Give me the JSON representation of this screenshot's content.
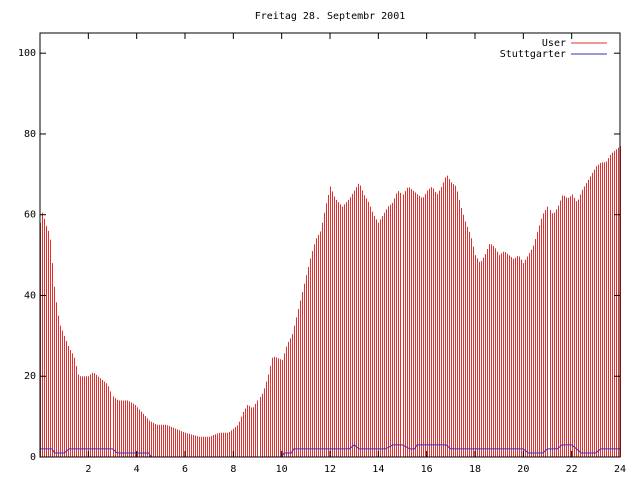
{
  "chart_data": {
    "type": "bar",
    "title": "Freitag 28. Septembr 2001",
    "xlabel": "",
    "ylabel": "",
    "xlim": [
      0,
      24
    ],
    "ylim": [
      0,
      105
    ],
    "x_ticks": [
      "2",
      "4",
      "6",
      "8",
      "10",
      "12",
      "14",
      "16",
      "18",
      "20",
      "22",
      "24"
    ],
    "y_ticks": [
      "0",
      "20",
      "40",
      "60",
      "80",
      "100"
    ],
    "grid": false,
    "legend_position": "top-right",
    "series": [
      {
        "name": "User",
        "type": "bar",
        "color": "#e03030",
        "key_points": [
          [
            0,
            58
          ],
          [
            0.1,
            61
          ],
          [
            0.2,
            58
          ],
          [
            0.4,
            55
          ],
          [
            0.6,
            41
          ],
          [
            0.8,
            33
          ],
          [
            1.0,
            30
          ],
          [
            1.2,
            27
          ],
          [
            1.4,
            25
          ],
          [
            1.6,
            20
          ],
          [
            1.8,
            20
          ],
          [
            2.0,
            20
          ],
          [
            2.2,
            21
          ],
          [
            2.4,
            20
          ],
          [
            2.6,
            19
          ],
          [
            2.8,
            18
          ],
          [
            3.0,
            15
          ],
          [
            3.2,
            14
          ],
          [
            3.6,
            14
          ],
          [
            3.9,
            13
          ],
          [
            4.2,
            11
          ],
          [
            4.5,
            9
          ],
          [
            4.8,
            8
          ],
          [
            5.2,
            8
          ],
          [
            5.6,
            7
          ],
          [
            6.0,
            6
          ],
          [
            6.6,
            5
          ],
          [
            7.0,
            5
          ],
          [
            7.4,
            6
          ],
          [
            7.8,
            6
          ],
          [
            8.0,
            7
          ],
          [
            8.2,
            8
          ],
          [
            8.4,
            11
          ],
          [
            8.6,
            13
          ],
          [
            8.8,
            12
          ],
          [
            9.0,
            14
          ],
          [
            9.2,
            16
          ],
          [
            9.4,
            20
          ],
          [
            9.6,
            25
          ],
          [
            10.0,
            24
          ],
          [
            10.2,
            28
          ],
          [
            10.4,
            30
          ],
          [
            10.6,
            35
          ],
          [
            10.8,
            40
          ],
          [
            11.0,
            45
          ],
          [
            11.2,
            50
          ],
          [
            11.4,
            54
          ],
          [
            11.6,
            56
          ],
          [
            11.8,
            62
          ],
          [
            12.0,
            67
          ],
          [
            12.2,
            64
          ],
          [
            12.5,
            62
          ],
          [
            12.8,
            64
          ],
          [
            13.0,
            66
          ],
          [
            13.2,
            68
          ],
          [
            13.4,
            65
          ],
          [
            13.6,
            63
          ],
          [
            13.8,
            60
          ],
          [
            14.0,
            58
          ],
          [
            14.2,
            60
          ],
          [
            14.4,
            62
          ],
          [
            14.6,
            63
          ],
          [
            14.8,
            66
          ],
          [
            15.0,
            65
          ],
          [
            15.2,
            67
          ],
          [
            15.4,
            66
          ],
          [
            15.6,
            65
          ],
          [
            15.8,
            64
          ],
          [
            16.0,
            66
          ],
          [
            16.2,
            67
          ],
          [
            16.4,
            65
          ],
          [
            16.6,
            67
          ],
          [
            16.8,
            70
          ],
          [
            17.0,
            68
          ],
          [
            17.2,
            67
          ],
          [
            17.4,
            62
          ],
          [
            17.6,
            58
          ],
          [
            17.8,
            55
          ],
          [
            18.0,
            50
          ],
          [
            18.2,
            48
          ],
          [
            18.4,
            50
          ],
          [
            18.6,
            53
          ],
          [
            18.8,
            52
          ],
          [
            19.0,
            50
          ],
          [
            19.2,
            51
          ],
          [
            19.4,
            50
          ],
          [
            19.6,
            49
          ],
          [
            19.8,
            50
          ],
          [
            20.0,
            48
          ],
          [
            20.2,
            50
          ],
          [
            20.4,
            52
          ],
          [
            20.6,
            56
          ],
          [
            20.8,
            60
          ],
          [
            21.0,
            62
          ],
          [
            21.2,
            60
          ],
          [
            21.4,
            62
          ],
          [
            21.6,
            65
          ],
          [
            21.8,
            64
          ],
          [
            22.0,
            65
          ],
          [
            22.2,
            63
          ],
          [
            22.4,
            66
          ],
          [
            22.6,
            68
          ],
          [
            22.8,
            70
          ],
          [
            23.0,
            72
          ],
          [
            23.2,
            73
          ],
          [
            23.4,
            73
          ],
          [
            23.6,
            75
          ],
          [
            23.8,
            76
          ],
          [
            24.0,
            77
          ]
        ]
      },
      {
        "name": "Stuttgarter",
        "type": "line",
        "color": "#3030c0",
        "key_points": [
          [
            0,
            2
          ],
          [
            0.5,
            2
          ],
          [
            0.6,
            1
          ],
          [
            1.0,
            1
          ],
          [
            1.2,
            2
          ],
          [
            3.0,
            2
          ],
          [
            3.2,
            1
          ],
          [
            4.5,
            1
          ],
          [
            4.6,
            0
          ],
          [
            10.0,
            0
          ],
          [
            10.1,
            1
          ],
          [
            10.4,
            1
          ],
          [
            10.5,
            2
          ],
          [
            10.8,
            2
          ],
          [
            11.0,
            2
          ],
          [
            12.8,
            2
          ],
          [
            13.0,
            3
          ],
          [
            13.2,
            2
          ],
          [
            14.0,
            2
          ],
          [
            14.3,
            2
          ],
          [
            14.6,
            3
          ],
          [
            15.0,
            3
          ],
          [
            15.3,
            2
          ],
          [
            15.5,
            2
          ],
          [
            15.6,
            3
          ],
          [
            16.8,
            3
          ],
          [
            17.0,
            2
          ],
          [
            20.0,
            2
          ],
          [
            20.2,
            1
          ],
          [
            20.8,
            1
          ],
          [
            21.0,
            2
          ],
          [
            21.4,
            2
          ],
          [
            21.6,
            3
          ],
          [
            22.0,
            3
          ],
          [
            22.2,
            2
          ],
          [
            22.4,
            1
          ],
          [
            23.0,
            1
          ],
          [
            23.2,
            2
          ],
          [
            24.0,
            2
          ]
        ]
      }
    ]
  },
  "colors": {
    "axis": "#000000",
    "background": "#ffffff"
  }
}
